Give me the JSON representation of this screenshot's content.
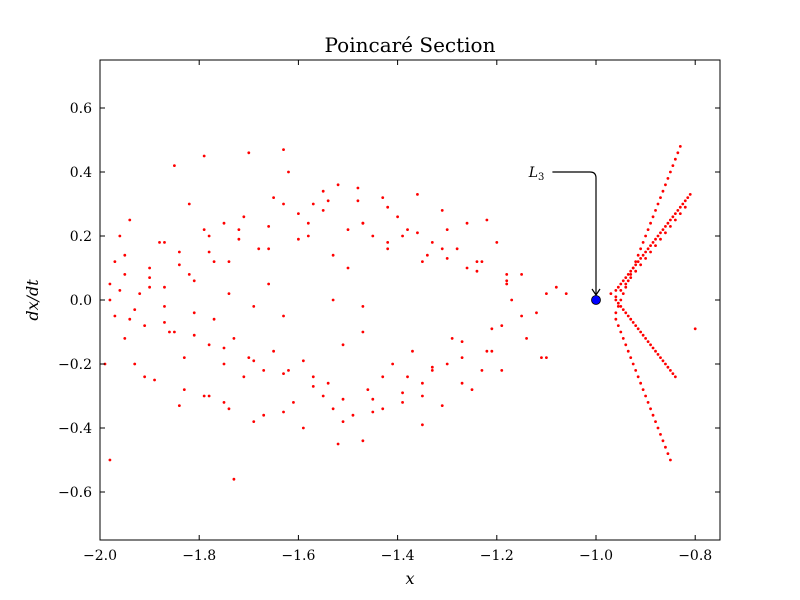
{
  "chart_data": {
    "type": "scatter",
    "title": "Poincaré Section",
    "xlabel": "x",
    "ylabel": "dx/dt",
    "xlim": [
      -2.0,
      -0.75
    ],
    "ylim": [
      -0.75,
      0.75
    ],
    "xticks": [
      -2.0,
      -1.8,
      -1.6,
      -1.4,
      -1.2,
      -1.0,
      -0.8
    ],
    "xtick_labels": [
      "−2.0",
      "−1.8",
      "−1.6",
      "−1.4",
      "−1.2",
      "−1.0",
      "−0.8"
    ],
    "yticks": [
      -0.6,
      -0.4,
      -0.2,
      0.0,
      0.2,
      0.4,
      0.6
    ],
    "ytick_labels": [
      "−0.6",
      "−0.4",
      "−0.2",
      "0.0",
      "0.2",
      "0.4",
      "0.6"
    ],
    "grid": false,
    "series": [
      {
        "color": "#ff0000",
        "marker": "dot",
        "x": [
          -1.98,
          -1.97,
          -1.96,
          -1.95,
          -1.94,
          -1.92,
          -1.9,
          -1.88,
          -1.87,
          -1.85,
          -1.84,
          -1.82,
          -1.81,
          -1.79,
          -1.78,
          -1.77,
          -1.75,
          -1.74,
          -1.72,
          -1.7,
          -1.68,
          -1.66,
          -1.65,
          -1.63,
          -1.62,
          -1.6,
          -1.58,
          -1.57,
          -1.55,
          -1.53,
          -1.52,
          -1.5,
          -1.48,
          -1.47,
          -1.45,
          -1.43,
          -1.42,
          -1.4,
          -1.38,
          -1.36,
          -1.35,
          -1.33,
          -1.31,
          -1.3,
          -1.28,
          -1.26,
          -1.24,
          -1.22,
          -1.2,
          -1.18,
          -1.97,
          -1.95,
          -1.93,
          -1.91,
          -1.89,
          -1.87,
          -1.85,
          -1.83,
          -1.81,
          -1.79,
          -1.77,
          -1.75,
          -1.73,
          -1.71,
          -1.69,
          -1.67,
          -1.65,
          -1.63,
          -1.61,
          -1.59,
          -1.57,
          -1.55,
          -1.53,
          -1.51,
          -1.49,
          -1.47,
          -1.45,
          -1.43,
          -1.41,
          -1.39,
          -1.37,
          -1.35,
          -1.33,
          -1.31,
          -1.29,
          -1.27,
          -1.25,
          -1.23,
          -1.21,
          -1.19,
          -1.96,
          -1.93,
          -1.9,
          -1.87,
          -1.84,
          -1.81,
          -1.78,
          -1.75,
          -1.72,
          -1.69,
          -1.66,
          -1.63,
          -1.6,
          -1.57,
          -1.54,
          -1.51,
          -1.48,
          -1.45,
          -1.42,
          -1.39,
          -1.36,
          -1.33,
          -1.3,
          -1.27,
          -1.24,
          -1.21,
          -1.18,
          -1.15,
          -1.99,
          -1.95,
          -1.91,
          -1.87,
          -1.83,
          -1.79,
          -1.75,
          -1.71,
          -1.67,
          -1.63,
          -1.59,
          -1.55,
          -1.51,
          -1.47,
          -1.43,
          -1.39,
          -1.35,
          -1.31,
          -1.27,
          -1.23,
          -1.19,
          -1.15,
          -1.11,
          -1.98,
          -1.94,
          -1.9,
          -1.86,
          -1.82,
          -1.78,
          -1.74,
          -1.7,
          -1.66,
          -1.62,
          -1.58,
          -1.54,
          -1.5,
          -1.46,
          -1.42,
          -1.38,
          -1.34,
          -1.3,
          -1.26,
          -1.22,
          -1.18,
          -1.14,
          -1.1,
          -1.84,
          -1.78,
          -1.69,
          -1.63,
          -1.52,
          -1.47,
          -1.35,
          -1.74,
          -1.98,
          -1.73,
          -1.53,
          -1.47,
          -1.12,
          -1.17,
          -1.08,
          -1.06,
          -1.1,
          -0.96,
          -0.955,
          -0.95,
          -0.945,
          -0.94,
          -0.935,
          -0.93,
          -0.925,
          -0.92,
          -0.915,
          -0.91,
          -0.905,
          -0.9,
          -0.895,
          -0.89,
          -0.885,
          -0.88,
          -0.875,
          -0.87,
          -0.865,
          -0.86,
          -0.855,
          -0.85,
          -0.845,
          -0.84,
          -0.835,
          -0.83,
          -0.96,
          -0.95,
          -0.94,
          -0.93,
          -0.92,
          -0.91,
          -0.9,
          -0.89,
          -0.88,
          -0.87,
          -0.86,
          -0.85,
          -0.84,
          -0.83,
          -0.82,
          -0.96,
          -0.955,
          -0.95,
          -0.945,
          -0.94,
          -0.935,
          -0.93,
          -0.925,
          -0.92,
          -0.915,
          -0.91,
          -0.905,
          -0.9,
          -0.895,
          -0.89,
          -0.885,
          -0.88,
          -0.875,
          -0.87,
          -0.865,
          -0.86,
          -0.855,
          -0.85,
          -0.96,
          -0.955,
          -0.95,
          -0.945,
          -0.94,
          -0.935,
          -0.93,
          -0.925,
          -0.92,
          -0.915,
          -0.91,
          -0.905,
          -0.9,
          -0.895,
          -0.89,
          -0.885,
          -0.88,
          -0.875,
          -0.87,
          -0.865,
          -0.86,
          -0.855,
          -0.85,
          -0.845,
          -0.84,
          -0.97,
          -0.96,
          -0.955,
          -0.95,
          -0.945,
          -0.94,
          -0.935,
          -0.93,
          -0.925,
          -0.92,
          -0.915,
          -0.91,
          -0.905,
          -0.9,
          -0.895,
          -0.89,
          -0.885,
          -0.88,
          -0.875,
          -0.87,
          -0.865,
          -0.86,
          -0.855,
          -0.85,
          -0.845,
          -0.84,
          -0.835,
          -0.83,
          -0.825,
          -0.82,
          -0.815,
          -0.81,
          -0.8
        ],
        "y": [
          0.05,
          0.12,
          0.2,
          0.08,
          0.25,
          0.02,
          0.1,
          0.18,
          0.04,
          0.42,
          0.15,
          0.3,
          0.06,
          0.45,
          0.2,
          0.12,
          0.24,
          0.02,
          0.22,
          0.46,
          0.16,
          0.05,
          0.32,
          0.47,
          0.4,
          0.19,
          0.24,
          0.3,
          0.34,
          0.14,
          0.36,
          0.1,
          0.31,
          0.24,
          0.2,
          0.32,
          0.16,
          0.26,
          0.22,
          0.33,
          0.12,
          0.18,
          0.28,
          0.22,
          0.16,
          0.24,
          0.12,
          0.25,
          0.18,
          0.08,
          -0.05,
          -0.12,
          -0.2,
          -0.08,
          -0.25,
          -0.02,
          -0.1,
          -0.18,
          -0.04,
          -0.3,
          -0.06,
          -0.2,
          -0.12,
          -0.24,
          -0.02,
          -0.22,
          -0.16,
          -0.05,
          -0.32,
          -0.19,
          -0.24,
          -0.3,
          -0.34,
          -0.14,
          -0.36,
          -0.1,
          -0.31,
          -0.24,
          -0.2,
          -0.32,
          -0.16,
          -0.26,
          -0.22,
          -0.33,
          -0.12,
          -0.18,
          -0.28,
          -0.22,
          -0.16,
          -0.08,
          0.03,
          -0.03,
          0.07,
          -0.07,
          0.11,
          -0.11,
          0.15,
          -0.15,
          0.19,
          -0.19,
          0.23,
          -0.23,
          0.27,
          -0.27,
          0.31,
          -0.31,
          0.35,
          -0.35,
          0.29,
          -0.29,
          0.21,
          -0.21,
          0.13,
          -0.13,
          0.09,
          -0.09,
          0.05,
          -0.05,
          -0.2,
          0.14,
          -0.24,
          0.18,
          -0.28,
          0.22,
          -0.32,
          0.26,
          -0.36,
          0.3,
          -0.4,
          0.28,
          -0.38,
          0.24,
          -0.34,
          0.2,
          -0.3,
          0.16,
          -0.26,
          0.12,
          -0.22,
          0.08,
          -0.18,
          0.0,
          -0.06,
          0.04,
          -0.1,
          0.08,
          -0.14,
          0.12,
          -0.18,
          0.16,
          -0.22,
          0.2,
          -0.26,
          0.22,
          -0.28,
          0.18,
          -0.24,
          0.14,
          -0.2,
          0.1,
          -0.16,
          0.06,
          -0.12,
          0.02,
          -0.33,
          -0.3,
          -0.38,
          -0.35,
          -0.45,
          -0.44,
          -0.39,
          -0.34,
          -0.5,
          -0.56,
          0.0,
          -0.02,
          -0.04,
          0.0,
          0.04,
          0.02,
          -0.18,
          -0.04,
          -0.02,
          0.0,
          0.02,
          0.04,
          0.06,
          0.08,
          0.1,
          0.12,
          0.14,
          0.16,
          0.18,
          0.2,
          0.22,
          0.24,
          0.26,
          0.28,
          0.3,
          0.32,
          0.34,
          0.36,
          0.38,
          0.4,
          0.42,
          0.44,
          0.46,
          0.48,
          0.01,
          0.03,
          0.05,
          0.07,
          0.09,
          0.11,
          0.13,
          0.15,
          0.17,
          0.19,
          0.21,
          0.23,
          0.25,
          0.27,
          0.29,
          -0.06,
          -0.08,
          -0.1,
          -0.12,
          -0.14,
          -0.16,
          -0.18,
          -0.2,
          -0.22,
          -0.24,
          -0.26,
          -0.28,
          -0.3,
          -0.32,
          -0.34,
          -0.36,
          -0.38,
          -0.4,
          -0.42,
          -0.44,
          -0.46,
          -0.48,
          -0.5,
          0.0,
          -0.01,
          -0.02,
          -0.03,
          -0.04,
          -0.05,
          -0.06,
          -0.07,
          -0.08,
          -0.09,
          -0.1,
          -0.11,
          -0.12,
          -0.13,
          -0.14,
          -0.15,
          -0.16,
          -0.17,
          -0.18,
          -0.19,
          -0.2,
          -0.21,
          -0.22,
          -0.23,
          -0.24,
          0.02,
          0.03,
          0.04,
          0.05,
          0.06,
          0.07,
          0.08,
          0.09,
          0.1,
          0.11,
          0.12,
          0.13,
          0.14,
          0.15,
          0.16,
          0.17,
          0.18,
          0.19,
          0.2,
          0.21,
          0.22,
          0.23,
          0.24,
          0.25,
          0.26,
          0.27,
          0.28,
          0.29,
          0.3,
          0.31,
          0.32,
          0.33,
          -0.09
        ]
      }
    ],
    "highlight_point": {
      "x": -1.0,
      "y": 0.0,
      "color": "#0000ff"
    },
    "annotation": {
      "text": "L",
      "subscript": "3",
      "x": -1.1,
      "y": 0.4,
      "target_x": -1.0,
      "target_y": 0.0
    }
  }
}
